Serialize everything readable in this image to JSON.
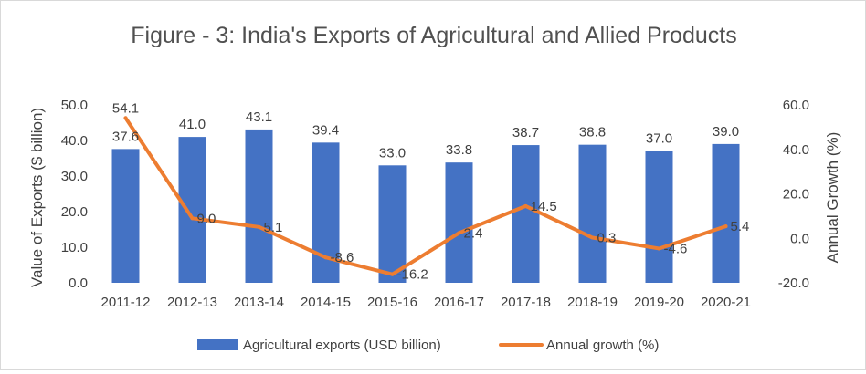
{
  "chart_data": {
    "type": "bar",
    "title": "Figure - 3: India's Exports of Agricultural and Allied Products",
    "categories": [
      "2011-12",
      "2012-13",
      "2013-14",
      "2014-15",
      "2015-16",
      "2016-17",
      "2017-18",
      "2018-19",
      "2019-20",
      "2020-21"
    ],
    "series": [
      {
        "name": "Agricultural exports (USD billion)",
        "type": "bar",
        "axis": "left",
        "color": "#4472C4",
        "values": [
          37.6,
          41.0,
          43.1,
          39.4,
          33.0,
          33.8,
          38.7,
          38.8,
          37.0,
          39.0
        ],
        "labels": [
          "37.6",
          "41.0",
          "43.1",
          "39.4",
          "33.0",
          "33.8",
          "38.7",
          "38.8",
          "37.0",
          "39.0"
        ]
      },
      {
        "name": "Annual growth (%)",
        "type": "line",
        "axis": "right",
        "color": "#ED7D31",
        "values": [
          54.1,
          9.0,
          5.1,
          -8.6,
          -16.2,
          2.4,
          14.5,
          0.3,
          -4.6,
          5.4
        ],
        "labels": [
          "54.1",
          "9.0",
          "5.1",
          "-8.6",
          "-16.2",
          "2.4",
          "14.5",
          "0.3",
          "-4.6",
          "5.4"
        ]
      }
    ],
    "ylabel": "Value of Exports ($ billion)",
    "ylabel_right": "Annual Growth (%)",
    "ylim": [
      0,
      50
    ],
    "ylim_right": [
      -20,
      60
    ],
    "yticks": [
      "0.0",
      "10.0",
      "20.0",
      "30.0",
      "40.0",
      "50.0"
    ],
    "yticks_right": [
      "-20.0",
      "0.0",
      "20.0",
      "40.0",
      "60.0"
    ],
    "legend": "bottom",
    "grid": false
  }
}
